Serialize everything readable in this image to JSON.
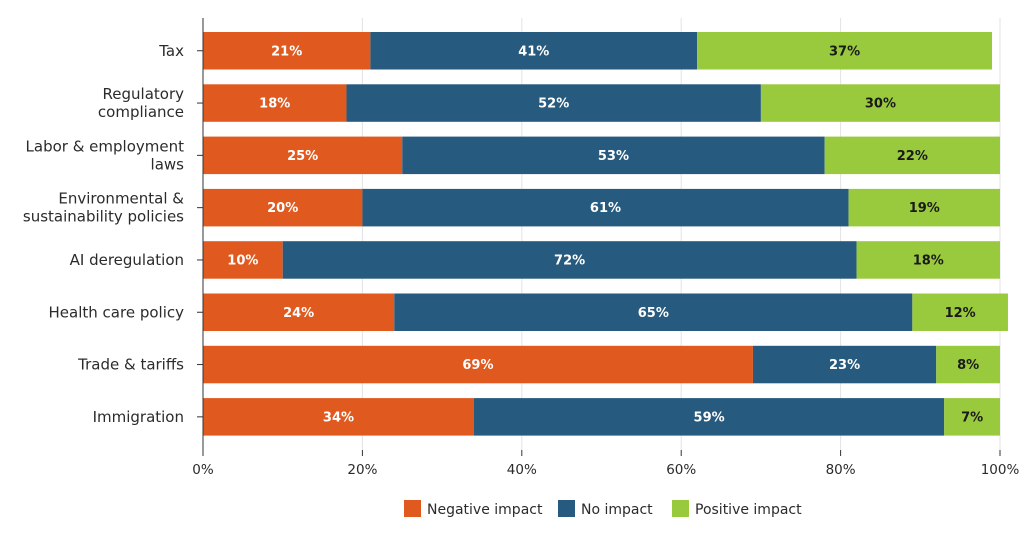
{
  "chart_data": {
    "type": "bar",
    "orientation": "horizontal",
    "stacked": true,
    "categories": [
      [
        "Tax"
      ],
      [
        "Regulatory",
        "compliance"
      ],
      [
        "Labor & employment",
        "laws"
      ],
      [
        "Environmental &",
        "sustainability policies"
      ],
      [
        "AI deregulation"
      ],
      [
        "Health care policy"
      ],
      [
        "Trade & tariffs"
      ],
      [
        "Immigration"
      ]
    ],
    "series": [
      {
        "name": "Negative impact",
        "color": "#e05a1f",
        "label_color": "#ffffff",
        "values": [
          21,
          18,
          25,
          20,
          10,
          24,
          69,
          34
        ]
      },
      {
        "name": "No impact",
        "color": "#265a7e",
        "label_color": "#ffffff",
        "values": [
          41,
          52,
          53,
          61,
          72,
          65,
          23,
          59
        ]
      },
      {
        "name": "Positive impact",
        "color": "#99c93c",
        "label_color": "#1a1a1a",
        "values": [
          37,
          30,
          22,
          19,
          18,
          12,
          8,
          7
        ]
      }
    ],
    "value_labels": [
      [
        "21%",
        "41%",
        "37%"
      ],
      [
        "18%",
        "52%",
        "30%"
      ],
      [
        "25%",
        "53%",
        "22%"
      ],
      [
        "20%",
        "61%",
        "19%"
      ],
      [
        "10%",
        "72%",
        "18%"
      ],
      [
        "24%",
        "65%",
        "12%"
      ],
      [
        "69%",
        "23%",
        "8%"
      ],
      [
        "34%",
        "59%",
        "7%"
      ]
    ],
    "xlim": [
      0,
      100
    ],
    "xticks": [
      0,
      20,
      40,
      60,
      80,
      100
    ],
    "xtick_labels": [
      "0%",
      "20%",
      "40%",
      "60%",
      "80%",
      "100%"
    ],
    "grid": true,
    "legend_position": "bottom-center",
    "title": "",
    "xlabel": "",
    "ylabel": ""
  }
}
